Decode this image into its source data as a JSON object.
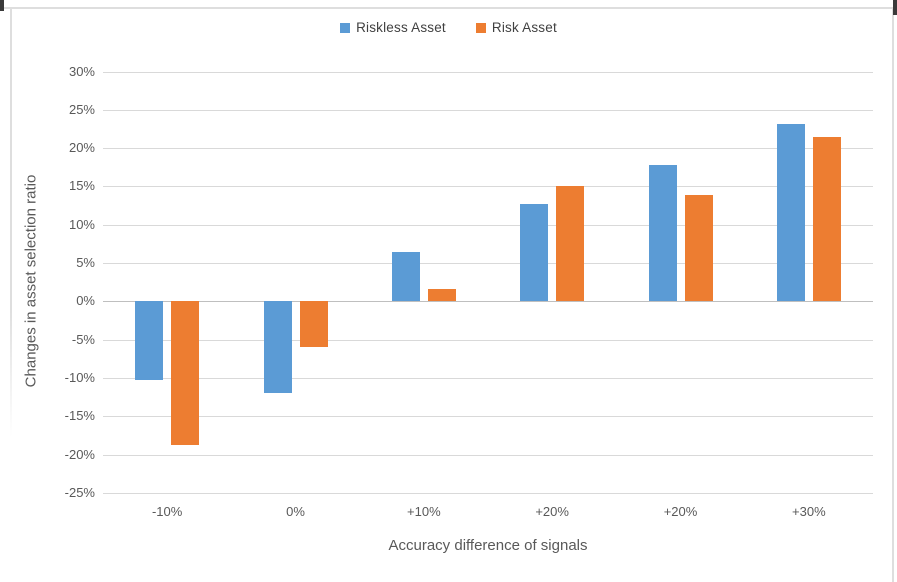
{
  "chart_data": {
    "type": "bar",
    "title": "",
    "categories": [
      "-10%",
      "0%",
      "+10%",
      "+20%",
      "+20%",
      "+30%"
    ],
    "series": [
      {
        "name": "Riskless Asset",
        "color": "#5B9BD5",
        "values": [
          -10.2,
          -12,
          6.5,
          12.7,
          17.8,
          23.2
        ]
      },
      {
        "name": "Risk Asset",
        "color": "#ED7D31",
        "values": [
          -18.8,
          -6,
          1.6,
          15,
          13.9,
          21.4
        ]
      }
    ],
    "xlabel": "Accuracy difference of signals",
    "ylabel": "Changes in asset selection ratio",
    "ylim": [
      -25,
      30
    ],
    "ytick_step": 5,
    "ytick_labels_top_to_bottom": [
      "30%",
      "25%",
      "20%",
      "15%",
      "10%",
      "5%",
      "0%",
      "-5%",
      "-10%",
      "-15%",
      "-20%",
      "-25%"
    ],
    "legend_position": "top-center",
    "grid": true
  },
  "style_colors": {
    "background": "#FFFFFF",
    "gridline": "#D9D9D9",
    "zero_line": "#BFBFBF",
    "tick_text": "#595959",
    "axis_title_text": "#595959",
    "legend_text": "#404040",
    "frame_border": "#DEDEDE"
  }
}
